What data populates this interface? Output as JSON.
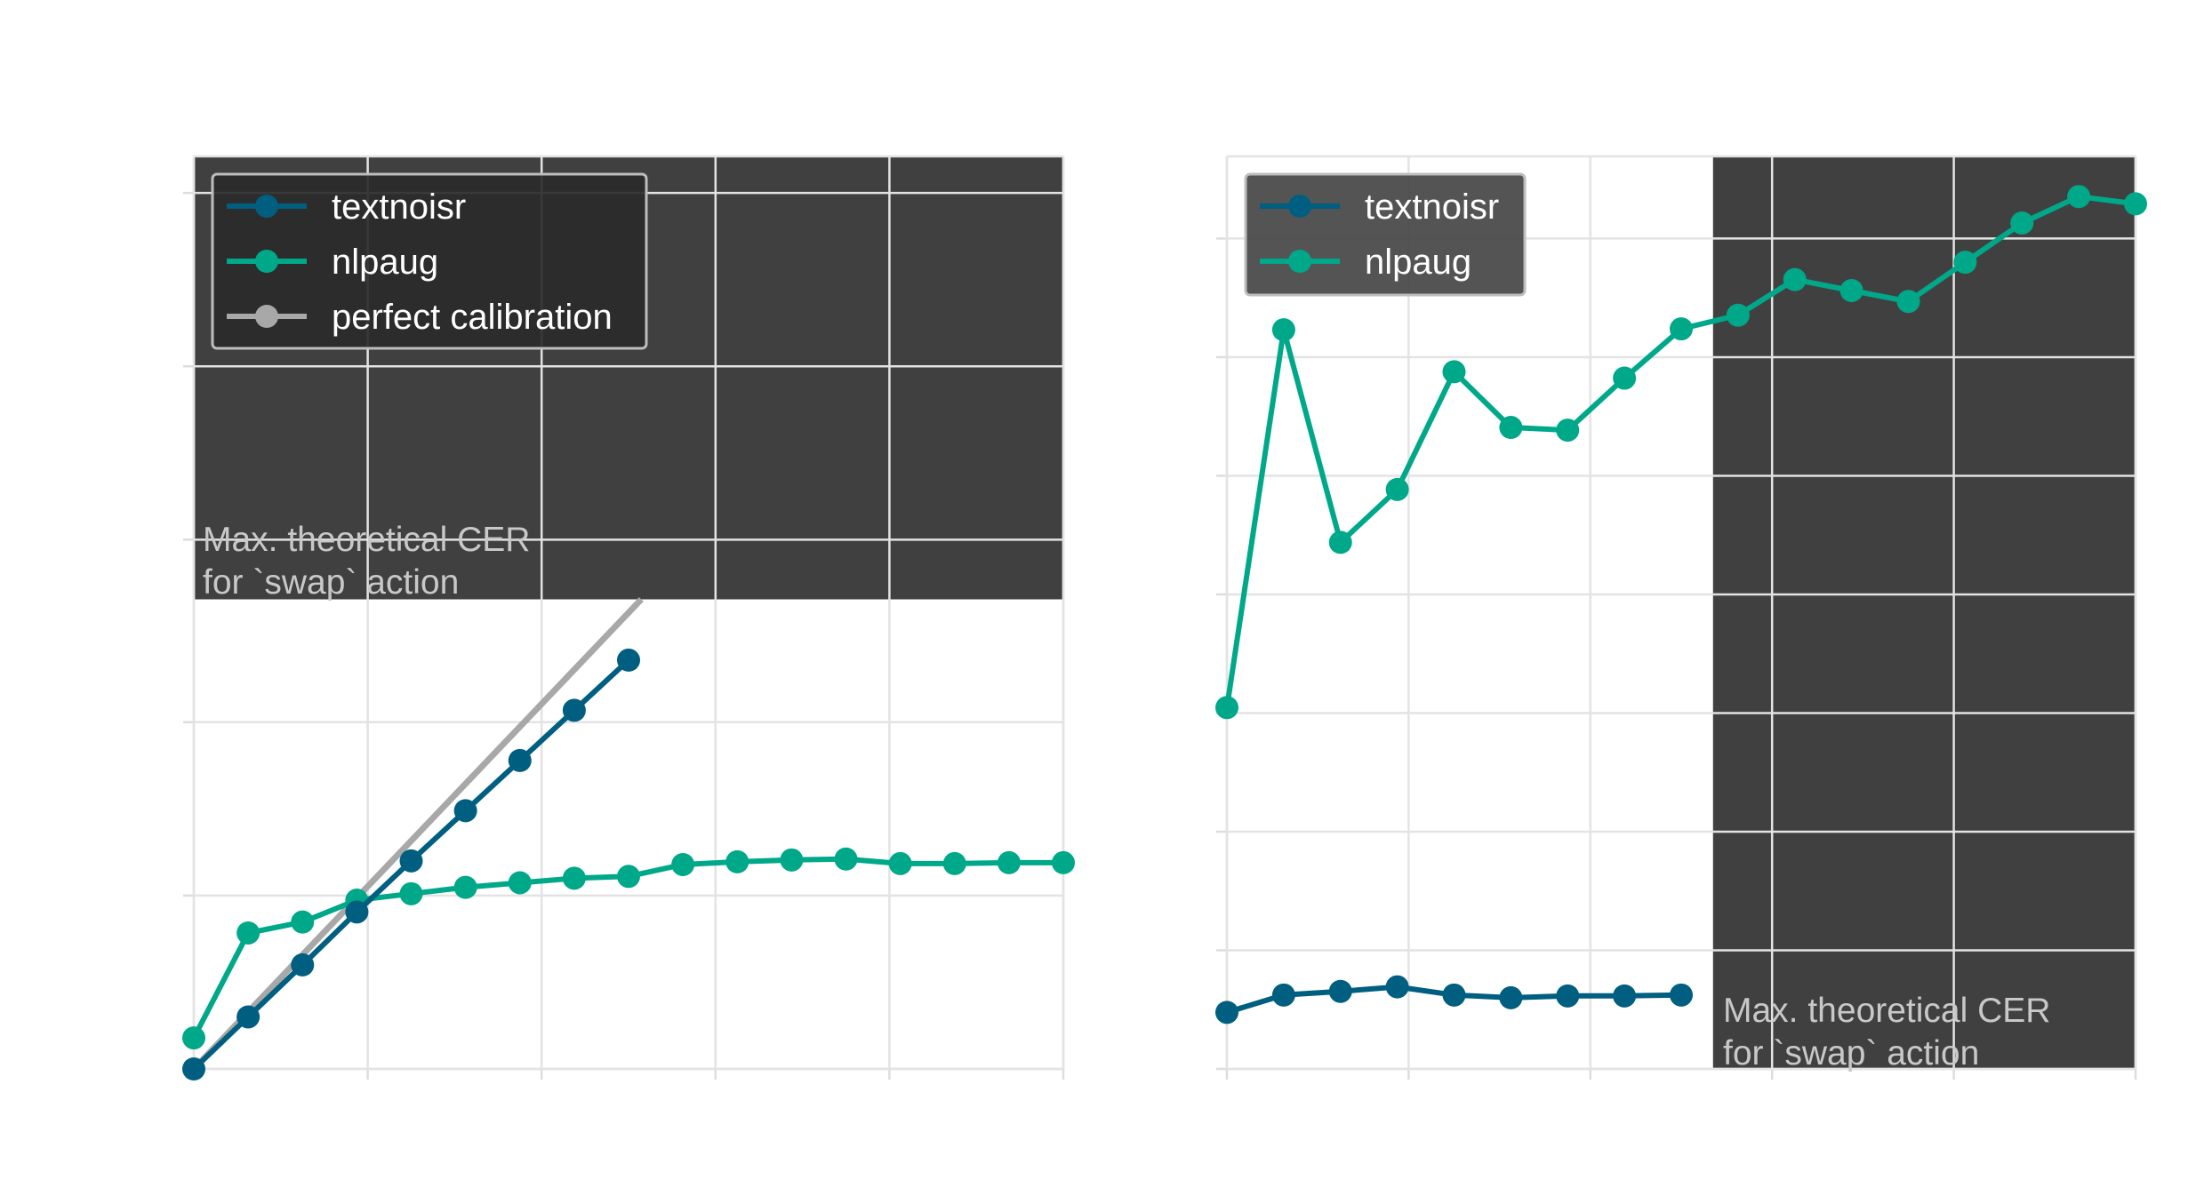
{
  "colors": {
    "textnoisr": "#005f80",
    "nlpaug": "#00a88a",
    "perfect": "#a8a8a8",
    "shade": "#404040",
    "grid": "#e3e3e3",
    "axis": "#dddddd"
  },
  "chart_data": [
    {
      "type": "line",
      "xlim": [
        0,
        1
      ],
      "ylim": [
        0,
        1
      ],
      "grid": true,
      "legend_placement": "top-left",
      "series": [
        {
          "name": "textnoisr",
          "color": "#005f80",
          "x": [
            0,
            0.0625,
            0.125,
            0.1875,
            0.25,
            0.3125,
            0.375,
            0.4375,
            0.5
          ],
          "y": [
            0,
            0.057,
            0.114,
            0.172,
            0.228,
            0.283,
            0.338,
            0.393,
            0.448
          ]
        },
        {
          "name": "nlpaug",
          "color": "#00a88a",
          "x": [
            0,
            0.0625,
            0.125,
            0.1875,
            0.25,
            0.3125,
            0.375,
            0.4375,
            0.5,
            0.5625,
            0.625,
            0.6875,
            0.75,
            0.8125,
            0.875,
            0.9375,
            1.0
          ],
          "y": [
            0.034,
            0.149,
            0.161,
            0.185,
            0.192,
            0.199,
            0.204,
            0.209,
            0.211,
            0.224,
            0.227,
            0.229,
            0.23,
            0.225,
            0.225,
            0.226,
            0.226
          ]
        },
        {
          "name": "perfect calibration",
          "color": "#a8a8a8",
          "x": [
            0,
            0.5146
          ],
          "y": [
            0,
            0.5146
          ]
        }
      ],
      "shaded_region": {
        "y_from": 0.5146,
        "y_to": 1.0
      },
      "annotation": [
        "Max. theoretical CER",
        "for `swap` action"
      ]
    },
    {
      "type": "line",
      "xlim": [
        0,
        1
      ],
      "ylim": [
        0,
        1
      ],
      "grid": true,
      "legend_placement": "top-left",
      "series": [
        {
          "name": "textnoisr",
          "color": "#005f80",
          "x": [
            0,
            0.0625,
            0.125,
            0.1875,
            0.25,
            0.3125,
            0.375,
            0.4375,
            0.5
          ],
          "y": [
            0.062,
            0.081,
            0.085,
            0.09,
            0.081,
            0.078,
            0.08,
            0.08,
            0.081
          ]
        },
        {
          "name": "nlpaug",
          "color": "#00a88a",
          "x": [
            0,
            0.0625,
            0.125,
            0.1875,
            0.25,
            0.3125,
            0.375,
            0.4375,
            0.5,
            0.5625,
            0.625,
            0.6875,
            0.75,
            0.8125,
            0.875,
            0.9375,
            1.0
          ],
          "y": [
            0.396,
            0.81,
            0.577,
            0.635,
            0.764,
            0.703,
            0.7,
            0.757,
            0.811,
            0.826,
            0.865,
            0.853,
            0.841,
            0.884,
            0.927,
            0.956,
            0.948
          ]
        }
      ],
      "shaded_region": {
        "x_from": 0.535,
        "x_to": 1.0
      },
      "annotation": [
        "Max. theoretical CER",
        "for `swap` action"
      ]
    }
  ]
}
